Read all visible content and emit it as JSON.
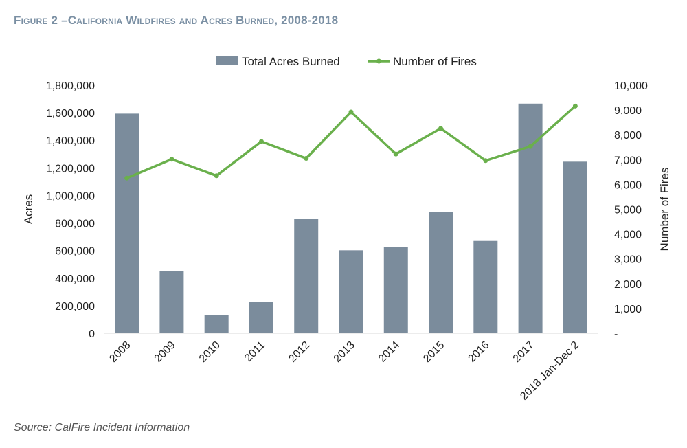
{
  "title": "Figure 2 –California Wildfires and Acres Burned, 2008-2018",
  "source": "Source: CalFire Incident Information",
  "colors": {
    "bar": "#7b8c9c",
    "line": "#6ab04c",
    "axis": "#d9d9d9",
    "title": "#7a8fa3"
  },
  "chart_data": {
    "type": "bar",
    "categories": [
      "2008",
      "2009",
      "2010",
      "2011",
      "2012",
      "2013",
      "2014",
      "2015",
      "2016",
      "2017",
      "2018 Jan-Dec 2"
    ],
    "series": [
      {
        "name": "Total Acres Burned",
        "type": "bar",
        "axis": "left",
        "values": [
          1593690,
          451199,
          134462,
          229231,
          829224,
          601635,
          625540,
          880899,
          669534,
          1666436,
          1245000
        ]
      },
      {
        "name": "Number of Fires",
        "type": "line",
        "axis": "right",
        "values": [
          6255,
          7015,
          6350,
          7730,
          7050,
          8920,
          7225,
          8260,
          6960,
          7530,
          9160
        ]
      }
    ],
    "ylabel": "Acres",
    "y2label": "Number of Fires",
    "ylim": [
      0,
      1800000
    ],
    "y2lim": [
      0,
      10000
    ],
    "yticks": [
      "0",
      "200,000",
      "400,000",
      "600,000",
      "800,000",
      "1,000,000",
      "1,200,000",
      "1,400,000",
      "1,600,000",
      "1,800,000"
    ],
    "y2ticks": [
      "-",
      "1,000",
      "2,000",
      "3,000",
      "4,000",
      "5,000",
      "6,000",
      "7,000",
      "8,000",
      "9,000",
      "10,000"
    ],
    "legend_position": "top-center",
    "grid": false
  }
}
